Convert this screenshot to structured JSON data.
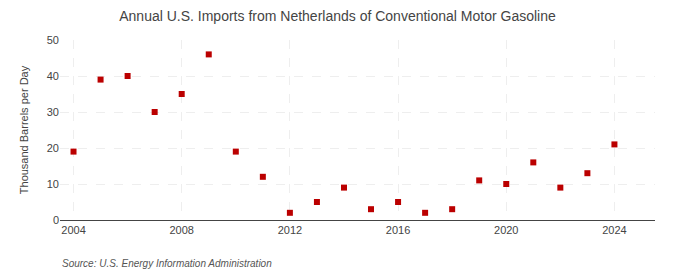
{
  "chart_data": {
    "type": "scatter",
    "title": "Annual U.S. Imports from Netherlands of Conventional Motor Gasoline",
    "ylabel": "Thousand Barrels per Day",
    "annotation": "Source: U.S. Energy Information Administration",
    "x": [
      2004,
      2005,
      2006,
      2007,
      2008,
      2009,
      2010,
      2011,
      2012,
      2013,
      2014,
      2015,
      2016,
      2017,
      2018,
      2019,
      2020,
      2021,
      2022,
      2023,
      2024
    ],
    "values": [
      19,
      39,
      40,
      30,
      35,
      46,
      19,
      12,
      2,
      5,
      9,
      3,
      5,
      2,
      3,
      11,
      10,
      16,
      9,
      13,
      21
    ],
    "color": "#bb0000",
    "marker": "square",
    "xlim": [
      2003.5,
      2025.5
    ],
    "ylim": [
      0,
      50
    ],
    "xticks": [
      2004,
      2008,
      2012,
      2016,
      2020,
      2024
    ],
    "yticks": [
      0,
      10,
      20,
      30,
      40,
      50
    ],
    "grid": true
  }
}
